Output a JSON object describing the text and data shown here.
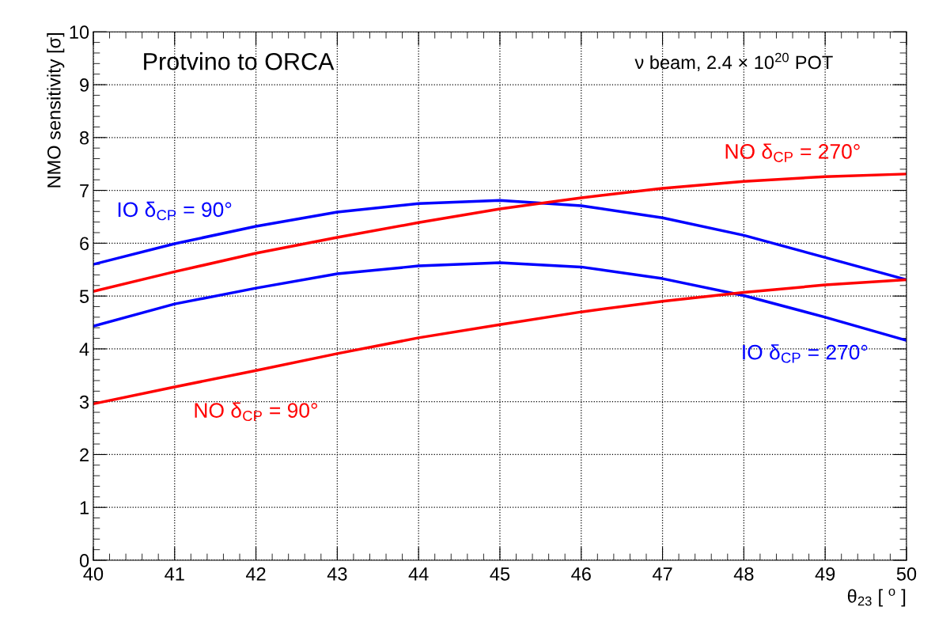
{
  "chart_data": {
    "type": "line",
    "title": "Protvino to ORCA",
    "subtitle": "ν beam, 2.4 × 10$^{20}$ POT",
    "xlabel": "θ$_{23}$ [ $^{o}$ ]",
    "ylabel": "NMO sensitivity [σ]",
    "x": [
      40,
      41,
      42,
      43,
      44,
      45,
      46,
      47,
      48,
      49,
      50
    ],
    "series": [
      {
        "color": "#0000ff",
        "values": [
          5.6,
          5.99,
          6.32,
          6.59,
          6.75,
          6.81,
          6.71,
          6.48,
          6.15,
          5.73,
          5.31
        ]
      },
      {
        "color": "#ff0000",
        "values": [
          5.09,
          5.46,
          5.81,
          6.11,
          6.39,
          6.65,
          6.86,
          7.04,
          7.17,
          7.26,
          7.31
        ]
      },
      {
        "color": "#0000ff",
        "values": [
          4.43,
          4.85,
          5.15,
          5.42,
          5.57,
          5.63,
          5.55,
          5.33,
          5.01,
          4.6,
          4.16
        ]
      },
      {
        "color": "#ff0000",
        "values": [
          2.96,
          3.28,
          3.59,
          3.91,
          4.21,
          4.46,
          4.7,
          4.9,
          5.07,
          5.21,
          5.31
        ]
      }
    ],
    "annotations": [
      "IO δ$_{CP}$ = 90°",
      "NO δ$_{CP}$ = 270°",
      "IO δ$_{CP}$ = 270°",
      "NO δ$_{CP}$ = 90°"
    ],
    "xlim": [
      40,
      50
    ],
    "ylim": [
      0,
      10
    ],
    "xticks": [
      40,
      41,
      42,
      43,
      44,
      45,
      46,
      47,
      48,
      49,
      50
    ],
    "yticks": [
      0,
      1,
      2,
      3,
      4,
      5,
      6,
      7,
      8,
      9,
      10
    ],
    "grid": true
  }
}
